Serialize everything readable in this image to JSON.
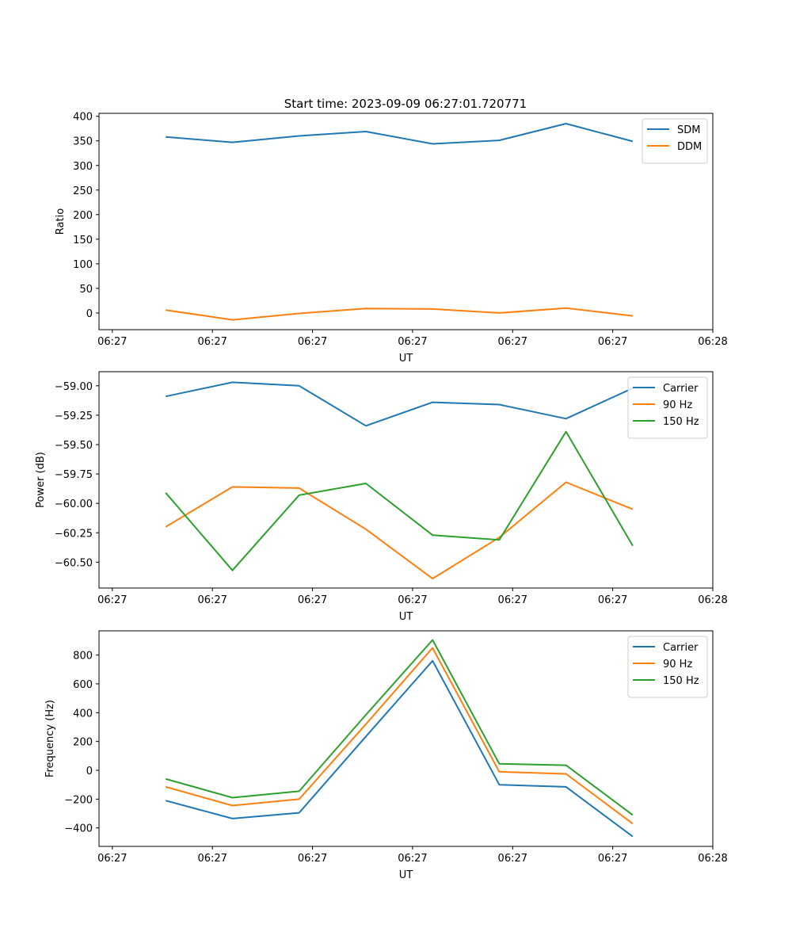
{
  "figure": {
    "title": "Start time: 2023-09-09 06:27:01.720771"
  },
  "chart_data": [
    {
      "type": "line",
      "title": "Start time: 2023-09-09 06:27:01.720771",
      "xlabel": "UT",
      "ylabel": "Ratio",
      "x": [
        0.5,
        1.0,
        1.5,
        2.0,
        2.5,
        3.0,
        3.5,
        4.0
      ],
      "xlim": [
        0,
        4.6
      ],
      "xticks": [
        0.1,
        0.85,
        1.6,
        2.35,
        3.1,
        3.85,
        4.6
      ],
      "xticklabels": [
        "06:27",
        "06:27",
        "06:27",
        "06:27",
        "06:27",
        "06:27",
        "06:28"
      ],
      "ylim": [
        -34,
        406
      ],
      "yticks": [
        0,
        50,
        100,
        150,
        200,
        250,
        300,
        350,
        400
      ],
      "yticklabels": [
        "0",
        "50",
        "100",
        "150",
        "200",
        "250",
        "300",
        "350",
        "400"
      ],
      "legend": "top-right",
      "series": [
        {
          "name": "SDM",
          "color": "#1f77b4",
          "values": [
            358,
            347,
            360,
            369,
            344,
            351,
            385,
            349
          ]
        },
        {
          "name": "DDM",
          "color": "#ff7f0e",
          "values": [
            6,
            -14,
            -1,
            9,
            8,
            0,
            10,
            -6
          ]
        }
      ]
    },
    {
      "type": "line",
      "title": "",
      "xlabel": "UT",
      "ylabel": "Power (dB)",
      "x": [
        0.5,
        1.0,
        1.5,
        2.0,
        2.5,
        3.0,
        3.5,
        4.0
      ],
      "xlim": [
        0,
        4.6
      ],
      "xticks": [
        0.1,
        0.85,
        1.6,
        2.35,
        3.1,
        3.85,
        4.6
      ],
      "xticklabels": [
        "06:27",
        "06:27",
        "06:27",
        "06:27",
        "06:27",
        "06:27",
        "06:28"
      ],
      "ylim": [
        -60.72,
        -58.88
      ],
      "yticks": [
        -60.5,
        -60.25,
        -60.0,
        -59.75,
        -59.5,
        -59.25,
        -59.0
      ],
      "yticklabels": [
        "−60.50",
        "−60.25",
        "−60.00",
        "−59.75",
        "−59.50",
        "−59.25",
        "−59.00"
      ],
      "legend": "top-right",
      "series": [
        {
          "name": "Carrier",
          "color": "#1f77b4",
          "values": [
            -59.09,
            -58.97,
            -59.0,
            -59.34,
            -59.14,
            -59.16,
            -59.28,
            -59.02
          ]
        },
        {
          "name": "90 Hz",
          "color": "#ff7f0e",
          "values": [
            -60.2,
            -59.86,
            -59.87,
            -60.22,
            -60.64,
            -60.29,
            -59.82,
            -60.05
          ]
        },
        {
          "name": "150 Hz",
          "color": "#2ca02c",
          "values": [
            -59.91,
            -60.57,
            -59.93,
            -59.83,
            -60.27,
            -60.31,
            -59.39,
            -60.36
          ]
        }
      ]
    },
    {
      "type": "line",
      "title": "",
      "xlabel": "UT",
      "ylabel": "Frequency (Hz)",
      "x": [
        0.5,
        1.0,
        1.5,
        2.0,
        2.5,
        3.0,
        3.5,
        4.0
      ],
      "xlim": [
        0,
        4.6
      ],
      "xticks": [
        0.1,
        0.85,
        1.6,
        2.35,
        3.1,
        3.85,
        4.6
      ],
      "xticklabels": [
        "06:27",
        "06:27",
        "06:27",
        "06:27",
        "06:27",
        "06:27",
        "06:28"
      ],
      "ylim": [
        -528,
        968
      ],
      "yticks": [
        -400,
        -200,
        0,
        200,
        400,
        600,
        800
      ],
      "yticklabels": [
        "−400",
        "−200",
        "0",
        "200",
        "400",
        "600",
        "800"
      ],
      "legend": "top-right",
      "series": [
        {
          "name": "Carrier",
          "color": "#1f77b4",
          "values": [
            -210,
            -335,
            -295,
            235,
            760,
            -100,
            -115,
            -460
          ]
        },
        {
          "name": "90 Hz",
          "color": "#ff7f0e",
          "values": [
            -115,
            -245,
            -200,
            320,
            850,
            -10,
            -25,
            -370
          ]
        },
        {
          "name": "150 Hz",
          "color": "#2ca02c",
          "values": [
            -60,
            -190,
            -145,
            385,
            905,
            45,
            35,
            -310
          ]
        }
      ]
    }
  ]
}
